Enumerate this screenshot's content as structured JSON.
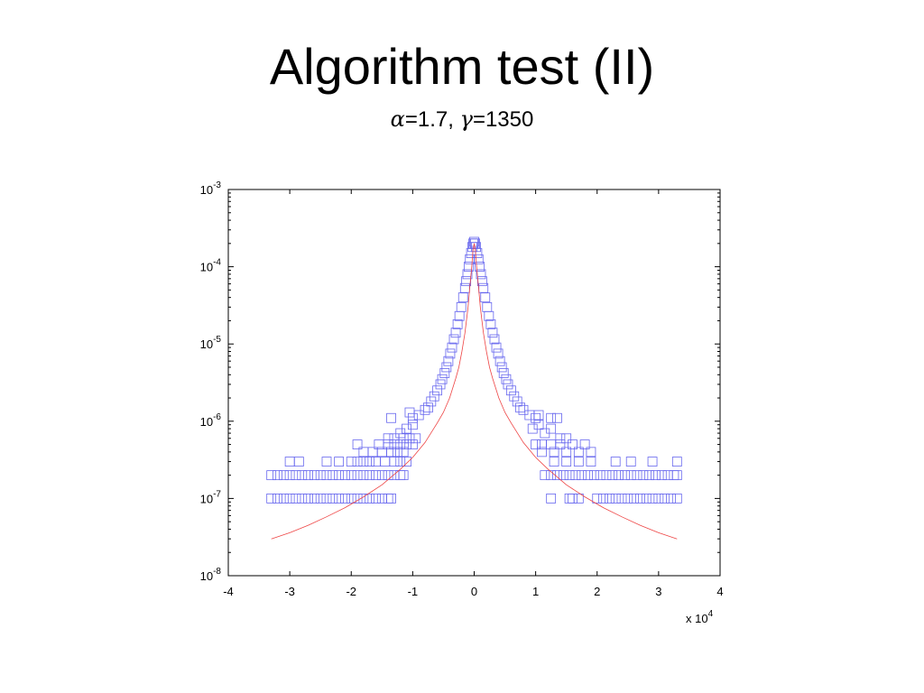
{
  "slide": {
    "title": "Algorithm test (II)",
    "subtitle": {
      "alpha_symbol": "α",
      "alpha_value": "=1.7, ",
      "gamma_symbol": "γ",
      "gamma_value": "=1350"
    }
  },
  "chart_data": {
    "type": "scatter",
    "title": "",
    "xlabel": "",
    "ylabel": "",
    "x_scale": "linear",
    "y_scale": "log",
    "xlim": [
      -40000,
      40000
    ],
    "ylim": [
      1e-08,
      0.001
    ],
    "x_ticks": [
      -40000,
      -30000,
      -20000,
      -10000,
      0,
      10000,
      20000,
      30000,
      40000
    ],
    "x_tick_labels": [
      "-4",
      "-3",
      "-2",
      "-1",
      "0",
      "1",
      "2",
      "3",
      "4"
    ],
    "x_multiplier": {
      "base": "x 10",
      "exponent": "4"
    },
    "y_ticks": [
      0.001,
      0.0001,
      1e-05,
      1e-06,
      1e-07,
      1e-08
    ],
    "y_tick_labels": [
      {
        "base": "10",
        "exponent": "-3"
      },
      {
        "base": "10",
        "exponent": "-4"
      },
      {
        "base": "10",
        "exponent": "-5"
      },
      {
        "base": "10",
        "exponent": "-6"
      },
      {
        "base": "10",
        "exponent": "-7"
      },
      {
        "base": "10",
        "exponent": "-8"
      }
    ],
    "grid": false,
    "series": [
      {
        "kind": "scatter",
        "marker": "square",
        "color": "#6666ee",
        "points": [
          [
            -33000,
            1e-07
          ],
          [
            -32000,
            1e-07
          ],
          [
            -31000,
            1e-07
          ],
          [
            -30000,
            1e-07
          ],
          [
            -29000,
            1e-07
          ],
          [
            -28000,
            1e-07
          ],
          [
            -27000,
            1e-07
          ],
          [
            -26000,
            1e-07
          ],
          [
            -25000,
            1e-07
          ],
          [
            -24000,
            1e-07
          ],
          [
            -23000,
            1e-07
          ],
          [
            -22000,
            1e-07
          ],
          [
            -21000,
            1e-07
          ],
          [
            -20000,
            1e-07
          ],
          [
            -19000,
            1e-07
          ],
          [
            -18000,
            1e-07
          ],
          [
            -17000,
            1e-07
          ],
          [
            -16000,
            1e-07
          ],
          [
            -15000,
            1e-07
          ],
          [
            -14000,
            1e-07
          ],
          [
            -13500,
            1e-07
          ],
          [
            -33000,
            2e-07
          ],
          [
            -32000,
            2e-07
          ],
          [
            -31000,
            2e-07
          ],
          [
            -30000,
            2e-07
          ],
          [
            -29000,
            2e-07
          ],
          [
            -28000,
            2e-07
          ],
          [
            -27000,
            2e-07
          ],
          [
            -26000,
            2e-07
          ],
          [
            -25000,
            2e-07
          ],
          [
            -24000,
            2e-07
          ],
          [
            -23000,
            2e-07
          ],
          [
            -22000,
            2e-07
          ],
          [
            -21000,
            2e-07
          ],
          [
            -20000,
            2e-07
          ],
          [
            -19000,
            2e-07
          ],
          [
            -18000,
            2e-07
          ],
          [
            -17000,
            2e-07
          ],
          [
            -16000,
            2e-07
          ],
          [
            -15000,
            2e-07
          ],
          [
            -14000,
            2e-07
          ],
          [
            -13000,
            2e-07
          ],
          [
            -12000,
            2e-07
          ],
          [
            -11500,
            2e-07
          ],
          [
            -30000,
            3e-07
          ],
          [
            -28500,
            3e-07
          ],
          [
            -24000,
            3e-07
          ],
          [
            -22000,
            3e-07
          ],
          [
            -20000,
            3e-07
          ],
          [
            -19000,
            3e-07
          ],
          [
            -18000,
            3e-07
          ],
          [
            -17000,
            3e-07
          ],
          [
            -16000,
            3e-07
          ],
          [
            -14500,
            3e-07
          ],
          [
            -13000,
            3e-07
          ],
          [
            -12000,
            3e-07
          ],
          [
            -11000,
            3e-07
          ],
          [
            -18000,
            4e-07
          ],
          [
            -16500,
            4e-07
          ],
          [
            -15000,
            4e-07
          ],
          [
            -13500,
            4e-07
          ],
          [
            -12500,
            4e-07
          ],
          [
            -11500,
            4e-07
          ],
          [
            -19000,
            5e-07
          ],
          [
            -15500,
            5e-07
          ],
          [
            -14000,
            5e-07
          ],
          [
            -13000,
            5e-07
          ],
          [
            -12000,
            5e-07
          ],
          [
            -11000,
            5e-07
          ],
          [
            -10000,
            5e-07
          ],
          [
            -14000,
            6e-07
          ],
          [
            -13000,
            6e-07
          ],
          [
            -11500,
            6e-07
          ],
          [
            -10500,
            6e-07
          ],
          [
            -9500,
            6e-07
          ],
          [
            -12000,
            7e-07
          ],
          [
            -11000,
            8e-07
          ],
          [
            -10000,
            9e-07
          ],
          [
            -13500,
            1.1e-06
          ],
          [
            -10000,
            1.1e-06
          ],
          [
            -9000,
            1.2e-06
          ],
          [
            -8000,
            1.4e-06
          ],
          [
            -7500,
            1.5e-06
          ],
          [
            -10500,
            1.3e-06
          ],
          [
            -7000,
            1.8e-06
          ],
          [
            -6500,
            2.1e-06
          ],
          [
            -6000,
            2.5e-06
          ],
          [
            -5500,
            3e-06
          ],
          [
            -5200,
            3.5e-06
          ],
          [
            -4800,
            4.2e-06
          ],
          [
            -4500,
            5e-06
          ],
          [
            -4200,
            6e-06
          ],
          [
            -3900,
            7.5e-06
          ],
          [
            -3600,
            9e-06
          ],
          [
            -3300,
            1.15e-05
          ],
          [
            -3000,
            1.4e-05
          ],
          [
            -2700,
            1.8e-05
          ],
          [
            -2400,
            2.3e-05
          ],
          [
            -2100,
            3e-05
          ],
          [
            -1800,
            4e-05
          ],
          [
            -1500,
            5.3e-05
          ],
          [
            -1300,
            6.5e-05
          ],
          [
            -1100,
            8e-05
          ],
          [
            -900,
            0.0001
          ],
          [
            -700,
            0.000125
          ],
          [
            -500,
            0.00015
          ],
          [
            -300,
            0.00018
          ],
          [
            -150,
            0.0002
          ],
          [
            0,
            0.00021
          ],
          [
            150,
            0.0002
          ],
          [
            300,
            0.00018
          ],
          [
            500,
            0.00015
          ],
          [
            700,
            0.000125
          ],
          [
            900,
            0.0001
          ],
          [
            1100,
            8e-05
          ],
          [
            1300,
            6.5e-05
          ],
          [
            1500,
            5.3e-05
          ],
          [
            1800,
            4e-05
          ],
          [
            2100,
            3e-05
          ],
          [
            2400,
            2.3e-05
          ],
          [
            2700,
            1.8e-05
          ],
          [
            3000,
            1.4e-05
          ],
          [
            3300,
            1.15e-05
          ],
          [
            3600,
            9e-06
          ],
          [
            3900,
            7.5e-06
          ],
          [
            4200,
            6e-06
          ],
          [
            4500,
            5e-06
          ],
          [
            4800,
            4.2e-06
          ],
          [
            5200,
            3.5e-06
          ],
          [
            5500,
            3e-06
          ],
          [
            6000,
            2.5e-06
          ],
          [
            6500,
            2.1e-06
          ],
          [
            7000,
            1.8e-06
          ],
          [
            7500,
            1.5e-06
          ],
          [
            8000,
            1.4e-06
          ],
          [
            9000,
            1.2e-06
          ],
          [
            10000,
            1.1e-06
          ],
          [
            10500,
            1.2e-06
          ],
          [
            12500,
            1.1e-06
          ],
          [
            13500,
            1.1e-06
          ],
          [
            9500,
            8e-07
          ],
          [
            10500,
            9e-07
          ],
          [
            11500,
            7e-07
          ],
          [
            12500,
            8e-07
          ],
          [
            14000,
            6e-07
          ],
          [
            15000,
            6e-07
          ],
          [
            10000,
            5e-07
          ],
          [
            11000,
            5e-07
          ],
          [
            12500,
            5e-07
          ],
          [
            14000,
            5e-07
          ],
          [
            16000,
            5e-07
          ],
          [
            18000,
            5e-07
          ],
          [
            11000,
            4e-07
          ],
          [
            13000,
            4e-07
          ],
          [
            15000,
            4e-07
          ],
          [
            17000,
            4e-07
          ],
          [
            19000,
            4e-07
          ],
          [
            13000,
            3e-07
          ],
          [
            15000,
            3e-07
          ],
          [
            17000,
            3e-07
          ],
          [
            19000,
            3e-07
          ],
          [
            23000,
            3e-07
          ],
          [
            25500,
            3e-07
          ],
          [
            29000,
            3e-07
          ],
          [
            33000,
            3e-07
          ],
          [
            11500,
            2e-07
          ],
          [
            12500,
            2e-07
          ],
          [
            13500,
            2e-07
          ],
          [
            14500,
            2e-07
          ],
          [
            15500,
            2e-07
          ],
          [
            16500,
            2e-07
          ],
          [
            17500,
            2e-07
          ],
          [
            18500,
            2e-07
          ],
          [
            19500,
            2e-07
          ],
          [
            20500,
            2e-07
          ],
          [
            21500,
            2e-07
          ],
          [
            22500,
            2e-07
          ],
          [
            23500,
            2e-07
          ],
          [
            24500,
            2e-07
          ],
          [
            25500,
            2e-07
          ],
          [
            26500,
            2e-07
          ],
          [
            27500,
            2e-07
          ],
          [
            28500,
            2e-07
          ],
          [
            29500,
            2e-07
          ],
          [
            30500,
            2e-07
          ],
          [
            31500,
            2e-07
          ],
          [
            32500,
            2e-07
          ],
          [
            33000,
            2e-07
          ],
          [
            12500,
            1e-07
          ],
          [
            15500,
            1e-07
          ],
          [
            16000,
            1e-07
          ],
          [
            17000,
            1e-07
          ],
          [
            20000,
            1e-07
          ],
          [
            21000,
            1e-07
          ],
          [
            22000,
            1e-07
          ],
          [
            23000,
            1e-07
          ],
          [
            24000,
            1e-07
          ],
          [
            25000,
            1e-07
          ],
          [
            26000,
            1e-07
          ],
          [
            27000,
            1e-07
          ],
          [
            28000,
            1e-07
          ],
          [
            29000,
            1e-07
          ],
          [
            30000,
            1e-07
          ],
          [
            31000,
            1e-07
          ],
          [
            32000,
            1e-07
          ],
          [
            33000,
            1e-07
          ]
        ]
      },
      {
        "kind": "line",
        "color": "#ee4444",
        "points": [
          [
            -33000,
            3e-08
          ],
          [
            -30000,
            3.6e-08
          ],
          [
            -27000,
            4.5e-08
          ],
          [
            -24000,
            5.8e-08
          ],
          [
            -21000,
            7.6e-08
          ],
          [
            -18000,
            1.05e-07
          ],
          [
            -15000,
            1.5e-07
          ],
          [
            -12000,
            2.4e-07
          ],
          [
            -10000,
            3.4e-07
          ],
          [
            -8000,
            5.3e-07
          ],
          [
            -6000,
            9.5e-07
          ],
          [
            -5000,
            1.3e-06
          ],
          [
            -4000,
            2e-06
          ],
          [
            -3000,
            3.6e-06
          ],
          [
            -2500,
            5e-06
          ],
          [
            -2000,
            8e-06
          ],
          [
            -1500,
            1.4e-05
          ],
          [
            -1000,
            3e-05
          ],
          [
            -700,
            5.5e-05
          ],
          [
            -400,
            0.0001
          ],
          [
            -200,
            0.00016
          ],
          [
            0,
            0.0002
          ],
          [
            200,
            0.00016
          ],
          [
            400,
            0.0001
          ],
          [
            700,
            5.5e-05
          ],
          [
            1000,
            3e-05
          ],
          [
            1500,
            1.4e-05
          ],
          [
            2000,
            8e-06
          ],
          [
            2500,
            5e-06
          ],
          [
            3000,
            3.6e-06
          ],
          [
            4000,
            2e-06
          ],
          [
            5000,
            1.3e-06
          ],
          [
            6000,
            9.5e-07
          ],
          [
            8000,
            5.3e-07
          ],
          [
            10000,
            3.4e-07
          ],
          [
            12000,
            2.4e-07
          ],
          [
            15000,
            1.5e-07
          ],
          [
            18000,
            1.05e-07
          ],
          [
            21000,
            7.6e-08
          ],
          [
            24000,
            5.8e-08
          ],
          [
            27000,
            4.5e-08
          ],
          [
            30000,
            3.6e-08
          ],
          [
            33000,
            3e-08
          ]
        ]
      }
    ]
  }
}
